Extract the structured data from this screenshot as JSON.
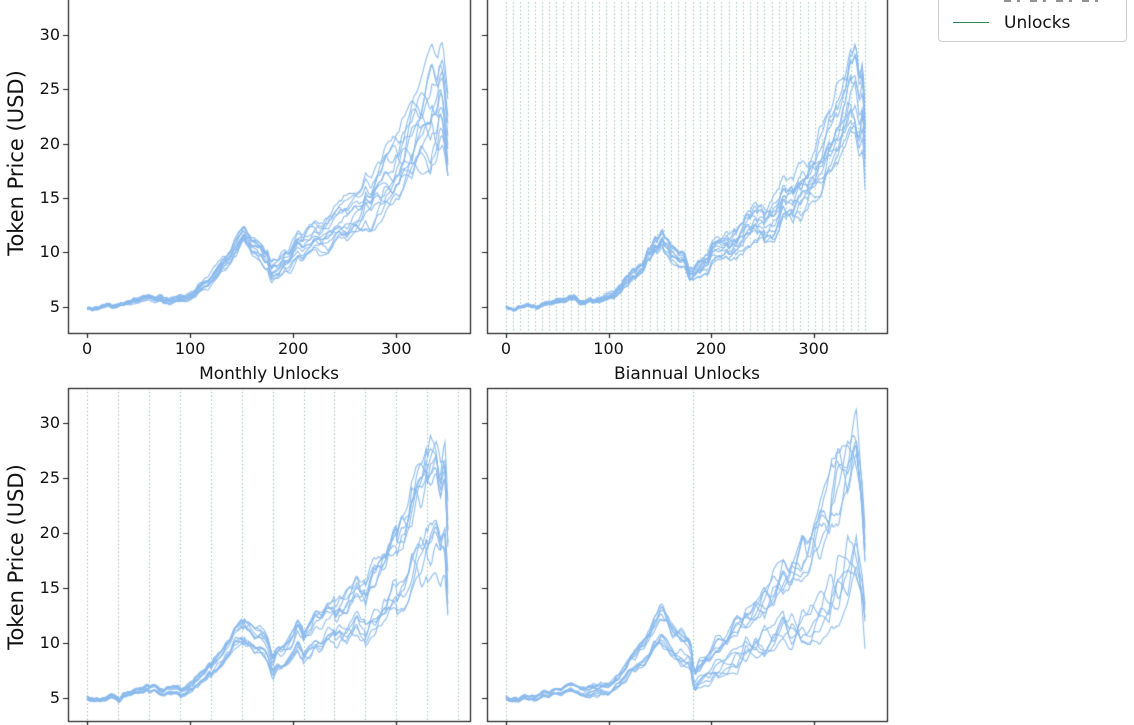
{
  "figure": {
    "background": "#ffffff",
    "path_color": "#8ab9ec",
    "unlock_line_color": "#2e8b57",
    "unlock_line_alpha": 0.5,
    "spine_color": "#1a1a1a",
    "text_color": "#111111"
  },
  "legend": {
    "entries": [
      {
        "label": "Unlocks",
        "color": "#2e8b57",
        "style": "line"
      }
    ],
    "position": "top-right",
    "clipped_at_top": true
  },
  "chart_data": [
    {
      "id": "top-left",
      "type": "line",
      "title": "",
      "xlabel": "",
      "ylabel": "Token Price (USD)",
      "xticks": [
        0,
        100,
        200,
        300
      ],
      "yticks": [
        5,
        10,
        15,
        20,
        25,
        30
      ],
      "xtick_labels_visible": true,
      "ytick_labels_visible": true,
      "xlim": [
        -18.5,
        371.5
      ],
      "ylim": [
        2.6,
        34.4
      ],
      "grid": false,
      "n_paths": 13,
      "seed": 11,
      "fan": [
        0.025,
        0.24
      ],
      "bimodal": false,
      "unlock_schedule": "none",
      "unlock_positions": [],
      "unlock_dip": 0,
      "start_price": 5,
      "median_anchors": [
        [
          0,
          5.0
        ],
        [
          6,
          4.75
        ],
        [
          14,
          5.0
        ],
        [
          22,
          5.15
        ],
        [
          30,
          5.1
        ],
        [
          38,
          5.35
        ],
        [
          46,
          5.5
        ],
        [
          54,
          5.75
        ],
        [
          62,
          5.9
        ],
        [
          68,
          5.75
        ],
        [
          74,
          5.55
        ],
        [
          82,
          5.7
        ],
        [
          90,
          5.75
        ],
        [
          96,
          5.8
        ],
        [
          102,
          6.05
        ],
        [
          108,
          6.5
        ],
        [
          116,
          7.2
        ],
        [
          124,
          8.1
        ],
        [
          132,
          8.9
        ],
        [
          140,
          9.9
        ],
        [
          147,
          10.9
        ],
        [
          152,
          11.6
        ],
        [
          157,
          11.0
        ],
        [
          163,
          10.3
        ],
        [
          169,
          9.9
        ],
        [
          175,
          9.4
        ],
        [
          179,
          8.1
        ],
        [
          184,
          8.5
        ],
        [
          190,
          8.9
        ],
        [
          197,
          9.4
        ],
        [
          204,
          10.8
        ],
        [
          209,
          10.1
        ],
        [
          216,
          10.7
        ],
        [
          224,
          11.3
        ],
        [
          232,
          11.8
        ],
        [
          240,
          12.2
        ],
        [
          248,
          12.8
        ],
        [
          256,
          13.2
        ],
        [
          264,
          13.9
        ],
        [
          272,
          14.6
        ],
        [
          280,
          15.0
        ],
        [
          288,
          15.9
        ],
        [
          296,
          16.9
        ],
        [
          304,
          18.1
        ],
        [
          312,
          19.5
        ],
        [
          320,
          21.2
        ],
        [
          328,
          22.6
        ],
        [
          335,
          23.7
        ],
        [
          340,
          23.0
        ],
        [
          345,
          24.3
        ],
        [
          348,
          22.5
        ],
        [
          350,
          20.8
        ]
      ]
    },
    {
      "id": "top-right",
      "type": "line",
      "title": "",
      "xlabel": "",
      "ylabel": "",
      "xticks": [
        0,
        100,
        200,
        300
      ],
      "yticks": [
        5,
        10,
        15,
        20,
        25,
        30
      ],
      "xtick_labels_visible": true,
      "ytick_labels_visible": false,
      "xlim": [
        -18.5,
        371.5
      ],
      "ylim": [
        2.6,
        34.4
      ],
      "grid": false,
      "n_paths": 13,
      "seed": 22,
      "fan": [
        0.02,
        0.2
      ],
      "bimodal": false,
      "unlock_schedule": "weekly",
      "unlock_positions": [
        0,
        7,
        14,
        21,
        28,
        35,
        42,
        49,
        56,
        63,
        70,
        77,
        84,
        91,
        98,
        105,
        112,
        119,
        126,
        133,
        140,
        147,
        154,
        161,
        168,
        175,
        182,
        189,
        196,
        203,
        210,
        217,
        224,
        231,
        238,
        245,
        252,
        259,
        266,
        273,
        280,
        287,
        294,
        301,
        308,
        315,
        322,
        329,
        336,
        343,
        350
      ],
      "unlock_dip": 0.02,
      "start_price": 5,
      "median_anchors": [
        [
          0,
          5.0
        ],
        [
          6,
          4.75
        ],
        [
          14,
          5.0
        ],
        [
          22,
          5.15
        ],
        [
          30,
          5.1
        ],
        [
          38,
          5.35
        ],
        [
          46,
          5.5
        ],
        [
          54,
          5.75
        ],
        [
          62,
          5.9
        ],
        [
          68,
          5.75
        ],
        [
          74,
          5.55
        ],
        [
          82,
          5.7
        ],
        [
          90,
          5.75
        ],
        [
          96,
          5.8
        ],
        [
          102,
          6.05
        ],
        [
          108,
          6.5
        ],
        [
          116,
          7.2
        ],
        [
          124,
          8.1
        ],
        [
          132,
          8.9
        ],
        [
          140,
          9.9
        ],
        [
          147,
          10.9
        ],
        [
          152,
          11.6
        ],
        [
          157,
          11.0
        ],
        [
          163,
          10.3
        ],
        [
          169,
          9.9
        ],
        [
          175,
          9.4
        ],
        [
          179,
          8.1
        ],
        [
          184,
          8.5
        ],
        [
          190,
          8.9
        ],
        [
          197,
          9.4
        ],
        [
          204,
          10.8
        ],
        [
          209,
          10.1
        ],
        [
          216,
          10.7
        ],
        [
          224,
          11.3
        ],
        [
          232,
          11.8
        ],
        [
          240,
          12.2
        ],
        [
          248,
          12.8
        ],
        [
          256,
          13.2
        ],
        [
          264,
          13.9
        ],
        [
          272,
          14.6
        ],
        [
          280,
          15.0
        ],
        [
          288,
          15.9
        ],
        [
          296,
          16.9
        ],
        [
          304,
          18.0
        ],
        [
          312,
          19.3
        ],
        [
          320,
          20.8
        ],
        [
          328,
          22.3
        ],
        [
          336,
          24.2
        ],
        [
          341,
          25.3
        ],
        [
          345,
          23.0
        ],
        [
          348,
          24.0
        ],
        [
          350,
          19.5
        ]
      ]
    },
    {
      "id": "bottom-left",
      "type": "line",
      "title": "Monthly Unlocks",
      "xlabel": "",
      "ylabel": "Token Price (USD)",
      "xticks": [
        0,
        100,
        200,
        300
      ],
      "yticks": [
        5,
        10,
        15,
        20,
        25,
        30
      ],
      "xtick_labels_visible": false,
      "ytick_labels_visible": true,
      "xlim": [
        -18.5,
        371.5
      ],
      "ylim": [
        2.9,
        33.2
      ],
      "grid": false,
      "n_paths": 13,
      "seed": 33,
      "fan": [
        0.025,
        0.26
      ],
      "bimodal": true,
      "unlock_schedule": "monthly",
      "unlock_positions": [
        0,
        30,
        60,
        90,
        120,
        150,
        180,
        210,
        240,
        270,
        300,
        330,
        360
      ],
      "unlock_dip": 0.05,
      "start_price": 5,
      "median_anchors": [
        [
          0,
          5.0
        ],
        [
          6,
          4.75
        ],
        [
          14,
          5.0
        ],
        [
          22,
          5.15
        ],
        [
          30,
          5.1
        ],
        [
          38,
          5.35
        ],
        [
          46,
          5.5
        ],
        [
          54,
          5.75
        ],
        [
          62,
          5.9
        ],
        [
          68,
          5.75
        ],
        [
          74,
          5.55
        ],
        [
          82,
          5.7
        ],
        [
          90,
          5.75
        ],
        [
          96,
          5.8
        ],
        [
          102,
          6.05
        ],
        [
          108,
          6.5
        ],
        [
          116,
          7.2
        ],
        [
          124,
          8.1
        ],
        [
          132,
          8.9
        ],
        [
          140,
          9.9
        ],
        [
          147,
          10.9
        ],
        [
          152,
          11.6
        ],
        [
          157,
          11.0
        ],
        [
          163,
          10.3
        ],
        [
          169,
          9.9
        ],
        [
          175,
          9.4
        ],
        [
          179,
          7.9
        ],
        [
          184,
          8.4
        ],
        [
          190,
          8.8
        ],
        [
          197,
          9.3
        ],
        [
          204,
          10.5
        ],
        [
          209,
          9.9
        ],
        [
          216,
          10.4
        ],
        [
          224,
          11.0
        ],
        [
          232,
          11.5
        ],
        [
          240,
          11.9
        ],
        [
          248,
          12.4
        ],
        [
          256,
          12.8
        ],
        [
          262,
          13.4
        ],
        [
          268,
          12.9
        ],
        [
          274,
          14.0
        ],
        [
          280,
          14.4
        ],
        [
          288,
          15.2
        ],
        [
          296,
          16.2
        ],
        [
          304,
          17.3
        ],
        [
          312,
          18.6
        ],
        [
          320,
          20.1
        ],
        [
          328,
          21.4
        ],
        [
          334,
          22.4
        ],
        [
          339,
          23.3
        ],
        [
          343,
          22.0
        ],
        [
          347,
          23.0
        ],
        [
          350,
          17.5
        ]
      ]
    },
    {
      "id": "bottom-right",
      "type": "line",
      "title": "Biannual Unlocks",
      "xlabel": "",
      "ylabel": "",
      "xticks": [
        0,
        100,
        200,
        300
      ],
      "yticks": [
        5,
        10,
        15,
        20,
        25,
        30
      ],
      "xtick_labels_visible": false,
      "ytick_labels_visible": false,
      "xlim": [
        -18.5,
        371.5
      ],
      "ylim": [
        2.9,
        33.2
      ],
      "grid": false,
      "n_paths": 13,
      "seed": 44,
      "fan": [
        0.03,
        0.38
      ],
      "bimodal": true,
      "unlock_schedule": "biannual",
      "unlock_positions": [
        0,
        182
      ],
      "unlock_dip": 0.1,
      "start_price": 5,
      "median_anchors": [
        [
          0,
          5.0
        ],
        [
          6,
          4.75
        ],
        [
          14,
          5.0
        ],
        [
          22,
          5.15
        ],
        [
          30,
          5.1
        ],
        [
          38,
          5.35
        ],
        [
          46,
          5.5
        ],
        [
          54,
          5.75
        ],
        [
          62,
          5.9
        ],
        [
          68,
          5.75
        ],
        [
          74,
          5.55
        ],
        [
          82,
          5.7
        ],
        [
          90,
          5.75
        ],
        [
          96,
          5.8
        ],
        [
          102,
          6.05
        ],
        [
          108,
          6.5
        ],
        [
          116,
          7.2
        ],
        [
          124,
          8.1
        ],
        [
          132,
          8.9
        ],
        [
          140,
          9.9
        ],
        [
          147,
          10.9
        ],
        [
          152,
          11.6
        ],
        [
          157,
          11.0
        ],
        [
          163,
          10.3
        ],
        [
          169,
          9.9
        ],
        [
          175,
          9.4
        ],
        [
          179,
          9.0
        ],
        [
          182,
          8.2
        ],
        [
          184,
          6.9
        ],
        [
          189,
          7.3
        ],
        [
          196,
          7.9
        ],
        [
          203,
          8.5
        ],
        [
          210,
          9.1
        ],
        [
          218,
          9.7
        ],
        [
          226,
          10.3
        ],
        [
          234,
          10.9
        ],
        [
          242,
          11.4
        ],
        [
          250,
          11.9
        ],
        [
          258,
          12.4
        ],
        [
          266,
          13.0
        ],
        [
          274,
          13.6
        ],
        [
          282,
          14.2
        ],
        [
          290,
          15.0
        ],
        [
          298,
          15.9
        ],
        [
          306,
          17.1
        ],
        [
          314,
          18.4
        ],
        [
          322,
          19.8
        ],
        [
          330,
          21.0
        ],
        [
          336,
          21.9
        ],
        [
          341,
          23.0
        ],
        [
          345,
          20.5
        ],
        [
          348,
          17.5
        ],
        [
          350,
          15.0
        ]
      ]
    }
  ]
}
